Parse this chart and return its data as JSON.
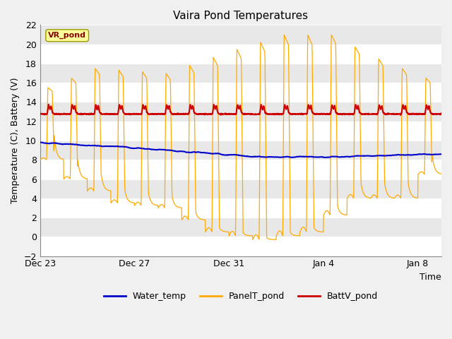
{
  "title": "Vaira Pond Temperatures",
  "xlabel": "Time",
  "ylabel": "Temperature (C), Battery (V)",
  "ylim": [
    -2,
    22
  ],
  "yticks": [
    -2,
    0,
    2,
    4,
    6,
    8,
    10,
    12,
    14,
    16,
    18,
    20,
    22
  ],
  "xtick_labels": [
    "Dec 23",
    "Dec 27",
    "Dec 31",
    "Jan 4",
    "Jan 8"
  ],
  "xtick_positions": [
    0,
    4,
    8,
    12,
    16
  ],
  "fig_bg": "#f0f0f0",
  "plot_bg": "#ffffff",
  "band_color": "#e8e8e8",
  "water_color": "#0000cc",
  "panel_color": "#ffaa00",
  "batt_color": "#cc0000",
  "watermark_text": "VR_pond",
  "watermark_bg": "#ffff99",
  "watermark_border": "#999900",
  "watermark_text_color": "#880000",
  "legend_labels": [
    "Water_temp",
    "PanelT_pond",
    "BattV_pond"
  ],
  "n_days": 17,
  "samples_per_day": 96
}
